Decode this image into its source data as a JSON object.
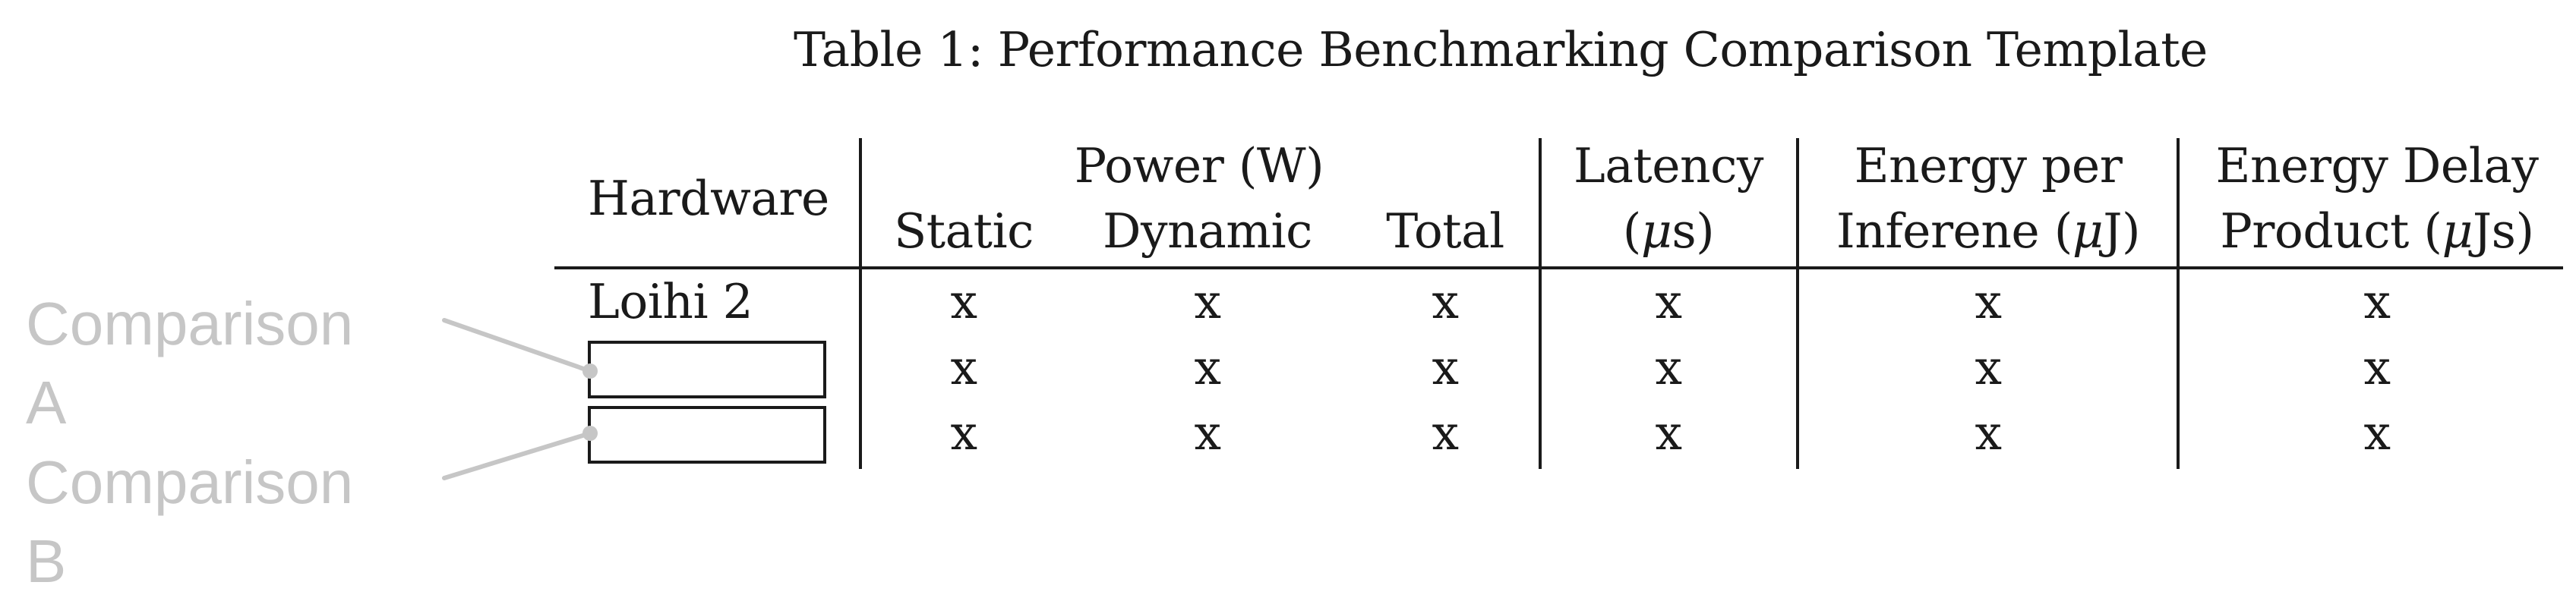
{
  "caption": {
    "label": "Table 1:",
    "title": "Performance Benchmarking Comparison Template"
  },
  "table": {
    "headers": {
      "hardware": "Hardware",
      "power_group": "Power (W)",
      "static": "Static",
      "dynamic": "Dynamic",
      "total": "Total",
      "latency_line1": "Latency",
      "latency_line2_pre": "(",
      "latency_line2_mu": "μ",
      "latency_line2_post": "s)",
      "energy_line1": "Energy per",
      "energy_line2_pre": "Inferene (",
      "energy_line2_mu": "μ",
      "energy_line2_post": "J)",
      "edp_line1": "Energy Delay",
      "edp_line2_pre": "Product (",
      "edp_line2_mu": "μ",
      "edp_line2_post": "Js)"
    },
    "rows": [
      {
        "hardware": "Loihi 2",
        "static": "x",
        "dynamic": "x",
        "total": "x",
        "latency": "x",
        "energy": "x",
        "edp": "x"
      },
      {
        "hardware": "",
        "static": "x",
        "dynamic": "x",
        "total": "x",
        "latency": "x",
        "energy": "x",
        "edp": "x"
      },
      {
        "hardware": "",
        "static": "x",
        "dynamic": "x",
        "total": "x",
        "latency": "x",
        "energy": "x",
        "edp": "x"
      }
    ]
  },
  "callouts": {
    "a": "Comparison A",
    "b": "Comparison B",
    "color": "#c6c6c6"
  }
}
